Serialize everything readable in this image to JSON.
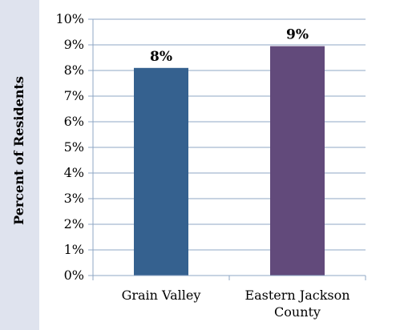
{
  "chart_data": {
    "type": "bar",
    "categories": [
      [
        "Grain Valley"
      ],
      [
        "Eastern Jackson",
        "County"
      ]
    ],
    "values": [
      8.1,
      8.95
    ],
    "data_labels": [
      "8%",
      "9%"
    ],
    "colors": [
      "#35618f",
      "#624a7b"
    ],
    "ylabel": "Percent of Residents",
    "ylim": [
      0,
      10
    ],
    "yticks": [
      "0%",
      "1%",
      "2%",
      "3%",
      "4%",
      "5%",
      "6%",
      "7%",
      "8%",
      "9%",
      "10%"
    ],
    "grid": true
  }
}
